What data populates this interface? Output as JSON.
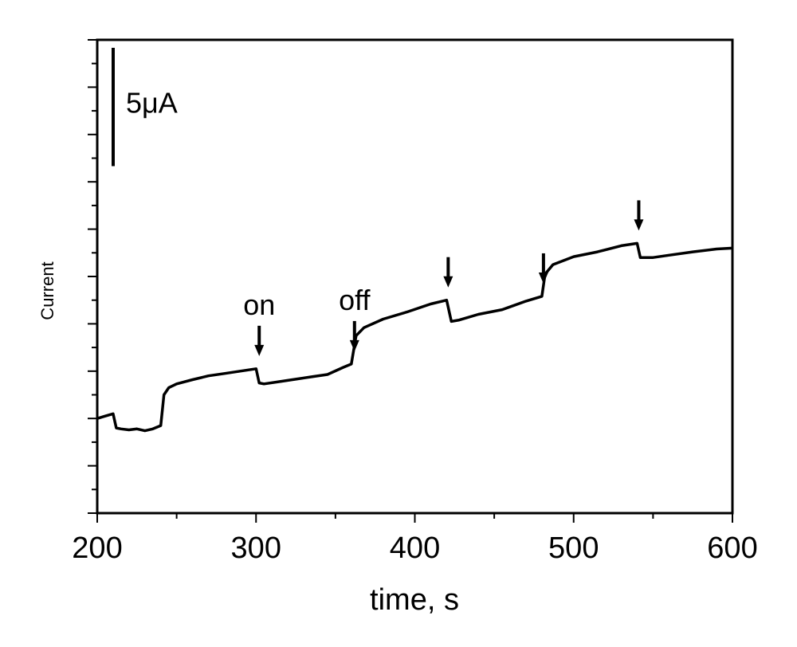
{
  "chart_data": {
    "type": "line",
    "title": "",
    "xlabel": "time, s",
    "ylabel": "Current",
    "xlim": [
      200,
      600
    ],
    "ylim": [
      0,
      10
    ],
    "x_ticks": [
      200,
      300,
      400,
      500,
      600
    ],
    "grid": false,
    "scale_bar": {
      "label": "5μA",
      "value": 2.5
    },
    "series": [
      {
        "points": [
          [
            200,
            2.0
          ],
          [
            205,
            2.05
          ],
          [
            210,
            2.1
          ],
          [
            212,
            1.8
          ],
          [
            215,
            1.78
          ],
          [
            220,
            1.76
          ],
          [
            225,
            1.78
          ],
          [
            230,
            1.74
          ],
          [
            235,
            1.78
          ],
          [
            240,
            1.85
          ],
          [
            242,
            2.5
          ],
          [
            245,
            2.65
          ],
          [
            250,
            2.73
          ],
          [
            260,
            2.82
          ],
          [
            270,
            2.9
          ],
          [
            280,
            2.95
          ],
          [
            290,
            3.0
          ],
          [
            300,
            3.05
          ],
          [
            302,
            2.75
          ],
          [
            305,
            2.73
          ],
          [
            315,
            2.78
          ],
          [
            325,
            2.83
          ],
          [
            335,
            2.88
          ],
          [
            345,
            2.93
          ],
          [
            355,
            3.08
          ],
          [
            360,
            3.15
          ],
          [
            363,
            3.75
          ],
          [
            368,
            3.92
          ],
          [
            380,
            4.1
          ],
          [
            395,
            4.25
          ],
          [
            410,
            4.42
          ],
          [
            420,
            4.5
          ],
          [
            423,
            4.05
          ],
          [
            428,
            4.08
          ],
          [
            440,
            4.2
          ],
          [
            455,
            4.3
          ],
          [
            470,
            4.48
          ],
          [
            480,
            4.58
          ],
          [
            482,
            5.05
          ],
          [
            487,
            5.25
          ],
          [
            500,
            5.42
          ],
          [
            515,
            5.52
          ],
          [
            530,
            5.65
          ],
          [
            540,
            5.7
          ],
          [
            542,
            5.4
          ],
          [
            550,
            5.4
          ],
          [
            560,
            5.45
          ],
          [
            575,
            5.52
          ],
          [
            590,
            5.58
          ],
          [
            600,
            5.6
          ]
        ]
      }
    ],
    "annotations": [
      {
        "label": "on",
        "x": 302,
        "y": 3.05
      },
      {
        "label": "off",
        "x": 362,
        "y": 3.15
      },
      {
        "label": "",
        "x": 421,
        "y": 4.5
      },
      {
        "label": "",
        "x": 481,
        "y": 4.58
      },
      {
        "label": "",
        "x": 541,
        "y": 5.7
      }
    ]
  }
}
